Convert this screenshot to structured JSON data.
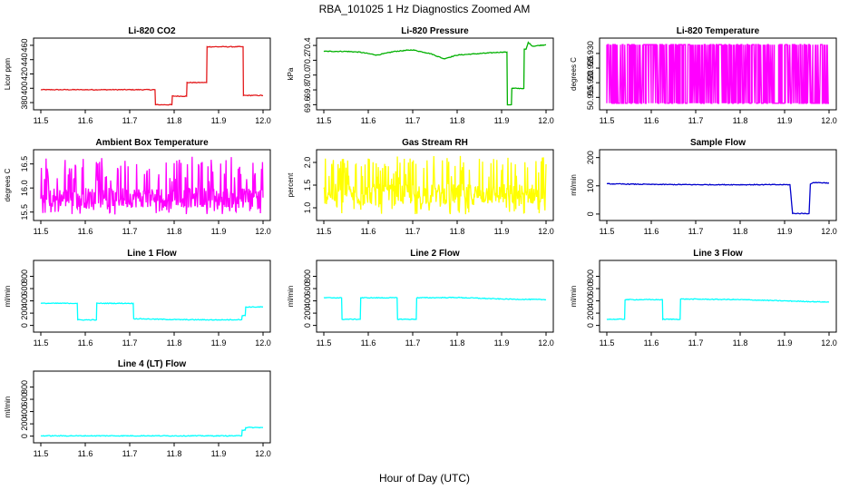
{
  "figure": {
    "title": "RBA_101025  1 Hz Diagnostics Zoomed AM",
    "xlabel": "Hour of Day (UTC)"
  },
  "chart_data": [
    {
      "type": "line",
      "title": "Li-820 CO2",
      "ylabel": "Licor ppm",
      "color": "#e31a1c",
      "xlim": [
        11.5,
        12.0
      ],
      "ylim": [
        375,
        465
      ],
      "x_ticks": [
        "11.5",
        "11.6",
        "11.7",
        "11.8",
        "11.9",
        "12.0"
      ],
      "y_ticks": [
        380,
        400,
        420,
        440,
        460
      ],
      "series": [
        {
          "x": [
            11.5,
            11.757,
            11.758,
            11.795,
            11.796,
            11.828,
            11.829,
            11.873,
            11.874,
            11.955,
            11.956,
            12.0
          ],
          "y": [
            398,
            398,
            377,
            377,
            389,
            389,
            408,
            408,
            458,
            458,
            390,
            390
          ]
        }
      ]
    },
    {
      "type": "line",
      "title": "Li-820 Pressure",
      "ylabel": "kPa",
      "color": "#00b000",
      "xlim": [
        11.5,
        12.0
      ],
      "ylim": [
        69.58,
        70.45
      ],
      "x_ticks": [
        "11.5",
        "11.6",
        "11.7",
        "11.8",
        "11.9",
        "12.0"
      ],
      "y_ticks": [
        69.6,
        69.8,
        70.0,
        70.2,
        70.4
      ],
      "series": [
        {
          "x": [
            11.5,
            11.55,
            11.58,
            11.62,
            11.66,
            11.7,
            11.74,
            11.77,
            11.8,
            11.85,
            11.9,
            11.912,
            11.913,
            11.922,
            11.923,
            11.95,
            11.951,
            11.955,
            11.96,
            11.97,
            12.0
          ],
          "y": [
            70.32,
            70.32,
            70.31,
            70.27,
            70.32,
            70.34,
            70.29,
            70.22,
            70.27,
            70.29,
            70.31,
            70.31,
            69.6,
            69.6,
            69.82,
            69.82,
            70.35,
            70.35,
            70.44,
            70.39,
            70.41
          ]
        }
      ]
    },
    {
      "type": "line",
      "title": "Li-820 Temperature",
      "ylabel": "degrees C",
      "color": "#ff00ff",
      "xlim": [
        11.5,
        12.0
      ],
      "ylim": [
        50.912,
        50.934
      ],
      "x_ticks": [
        "11.5",
        "11.6",
        "11.7",
        "11.8",
        "11.9",
        "12.0"
      ],
      "y_ticks": [
        50.915,
        50.92,
        50.925,
        50.93
      ],
      "series": [
        {
          "x": [
            11.5,
            12.0
          ],
          "y": [
            50.933,
            50.913
          ],
          "note_values": "oscillates between 50.913 and 50.933"
        }
      ]
    },
    {
      "type": "line",
      "title": "Ambient Box Temperature",
      "ylabel": "degrees C",
      "color": "#ff00ff",
      "xlim": [
        11.5,
        12.0
      ],
      "ylim": [
        15.4,
        16.72
      ],
      "x_ticks": [
        "11.5",
        "11.6",
        "11.7",
        "11.8",
        "11.9",
        "12.0"
      ],
      "y_ticks": [
        15.5,
        16.0,
        16.5
      ],
      "series": [
        {
          "x": [
            11.5,
            12.0
          ],
          "y_range": [
            15.45,
            16.65
          ],
          "center": 15.8
        }
      ]
    },
    {
      "type": "line",
      "title": "Gas Stream RH",
      "ylabel": "percent",
      "color": "#ffff00",
      "xlim": [
        11.5,
        12.0
      ],
      "ylim": [
        0.8,
        2.2
      ],
      "x_ticks": [
        "11.5",
        "11.6",
        "11.7",
        "11.8",
        "11.9",
        "12.0"
      ],
      "y_ticks": [
        1.0,
        1.5,
        2.0
      ],
      "series": [
        {
          "x": [
            11.5,
            12.0
          ],
          "y_range": [
            0.85,
            2.15
          ],
          "center": 1.3
        }
      ]
    },
    {
      "type": "line",
      "title": "Sample Flow",
      "ylabel": "ml/min",
      "color": "#0000cc",
      "xlim": [
        11.5,
        12.0
      ],
      "ylim": [
        -10,
        215
      ],
      "x_ticks": [
        "11.5",
        "11.6",
        "11.7",
        "11.8",
        "11.9",
        "12.0"
      ],
      "y_ticks": [
        0,
        100,
        200
      ],
      "series": [
        {
          "x": [
            11.5,
            11.6,
            11.7,
            11.8,
            11.9,
            11.912,
            11.918,
            11.955,
            11.958,
            11.965,
            12.0
          ],
          "y": [
            107,
            105,
            104,
            104,
            104,
            104,
            2,
            2,
            106,
            112,
            110
          ]
        }
      ]
    },
    {
      "type": "line",
      "title": "Line 1 Flow",
      "ylabel": "ml/min",
      "color": "#00ffff",
      "xlim": [
        11.5,
        12.0
      ],
      "ylim": [
        -50,
        1000
      ],
      "x_ticks": [
        "11.5",
        "11.6",
        "11.7",
        "11.8",
        "11.9",
        "12.0"
      ],
      "y_ticks": [
        0,
        200,
        400,
        600,
        800
      ],
      "series": [
        {
          "x": [
            11.5,
            11.582,
            11.583,
            11.625,
            11.626,
            11.708,
            11.709,
            11.8,
            11.9,
            11.952,
            11.953,
            11.96,
            11.961,
            12.0
          ],
          "y": [
            360,
            360,
            90,
            90,
            360,
            360,
            110,
            95,
            90,
            95,
            160,
            160,
            300,
            300
          ]
        }
      ]
    },
    {
      "type": "line",
      "title": "Line 2 Flow",
      "ylabel": "ml/min",
      "color": "#00ffff",
      "xlim": [
        11.5,
        12.0
      ],
      "ylim": [
        -50,
        1000
      ],
      "x_ticks": [
        "11.5",
        "11.6",
        "11.7",
        "11.8",
        "11.9",
        "12.0"
      ],
      "y_ticks": [
        0,
        200,
        400,
        600,
        800
      ],
      "series": [
        {
          "x": [
            11.5,
            11.54,
            11.541,
            11.582,
            11.583,
            11.665,
            11.666,
            11.708,
            11.709,
            11.8,
            11.9,
            12.0
          ],
          "y": [
            450,
            450,
            100,
            100,
            450,
            450,
            100,
            100,
            450,
            455,
            430,
            420
          ]
        }
      ]
    },
    {
      "type": "line",
      "title": "Line 3 Flow",
      "ylabel": "ml/min",
      "color": "#00ffff",
      "xlim": [
        11.5,
        12.0
      ],
      "ylim": [
        -50,
        1000
      ],
      "x_ticks": [
        "11.5",
        "11.6",
        "11.7",
        "11.8",
        "11.9",
        "12.0"
      ],
      "y_ticks": [
        0,
        200,
        400,
        600,
        800
      ],
      "series": [
        {
          "x": [
            11.5,
            11.54,
            11.541,
            11.625,
            11.626,
            11.665,
            11.666,
            11.8,
            11.9,
            12.0
          ],
          "y": [
            100,
            100,
            420,
            420,
            100,
            100,
            430,
            420,
            400,
            380
          ]
        }
      ]
    },
    {
      "type": "line",
      "title": "Line 4 (LT) Flow",
      "ylabel": "ml/min",
      "color": "#00ffff",
      "xlim": [
        11.5,
        12.0
      ],
      "ylim": [
        -50,
        1000
      ],
      "x_ticks": [
        "11.5",
        "11.6",
        "11.7",
        "11.8",
        "11.9",
        "12.0"
      ],
      "y_ticks": [
        0,
        200,
        400,
        600,
        800
      ],
      "series": [
        {
          "x": [
            11.5,
            11.7,
            11.9,
            11.952,
            11.953,
            11.96,
            11.961,
            12.0
          ],
          "y": [
            5,
            5,
            5,
            5,
            100,
            100,
            140,
            140
          ]
        }
      ]
    }
  ]
}
